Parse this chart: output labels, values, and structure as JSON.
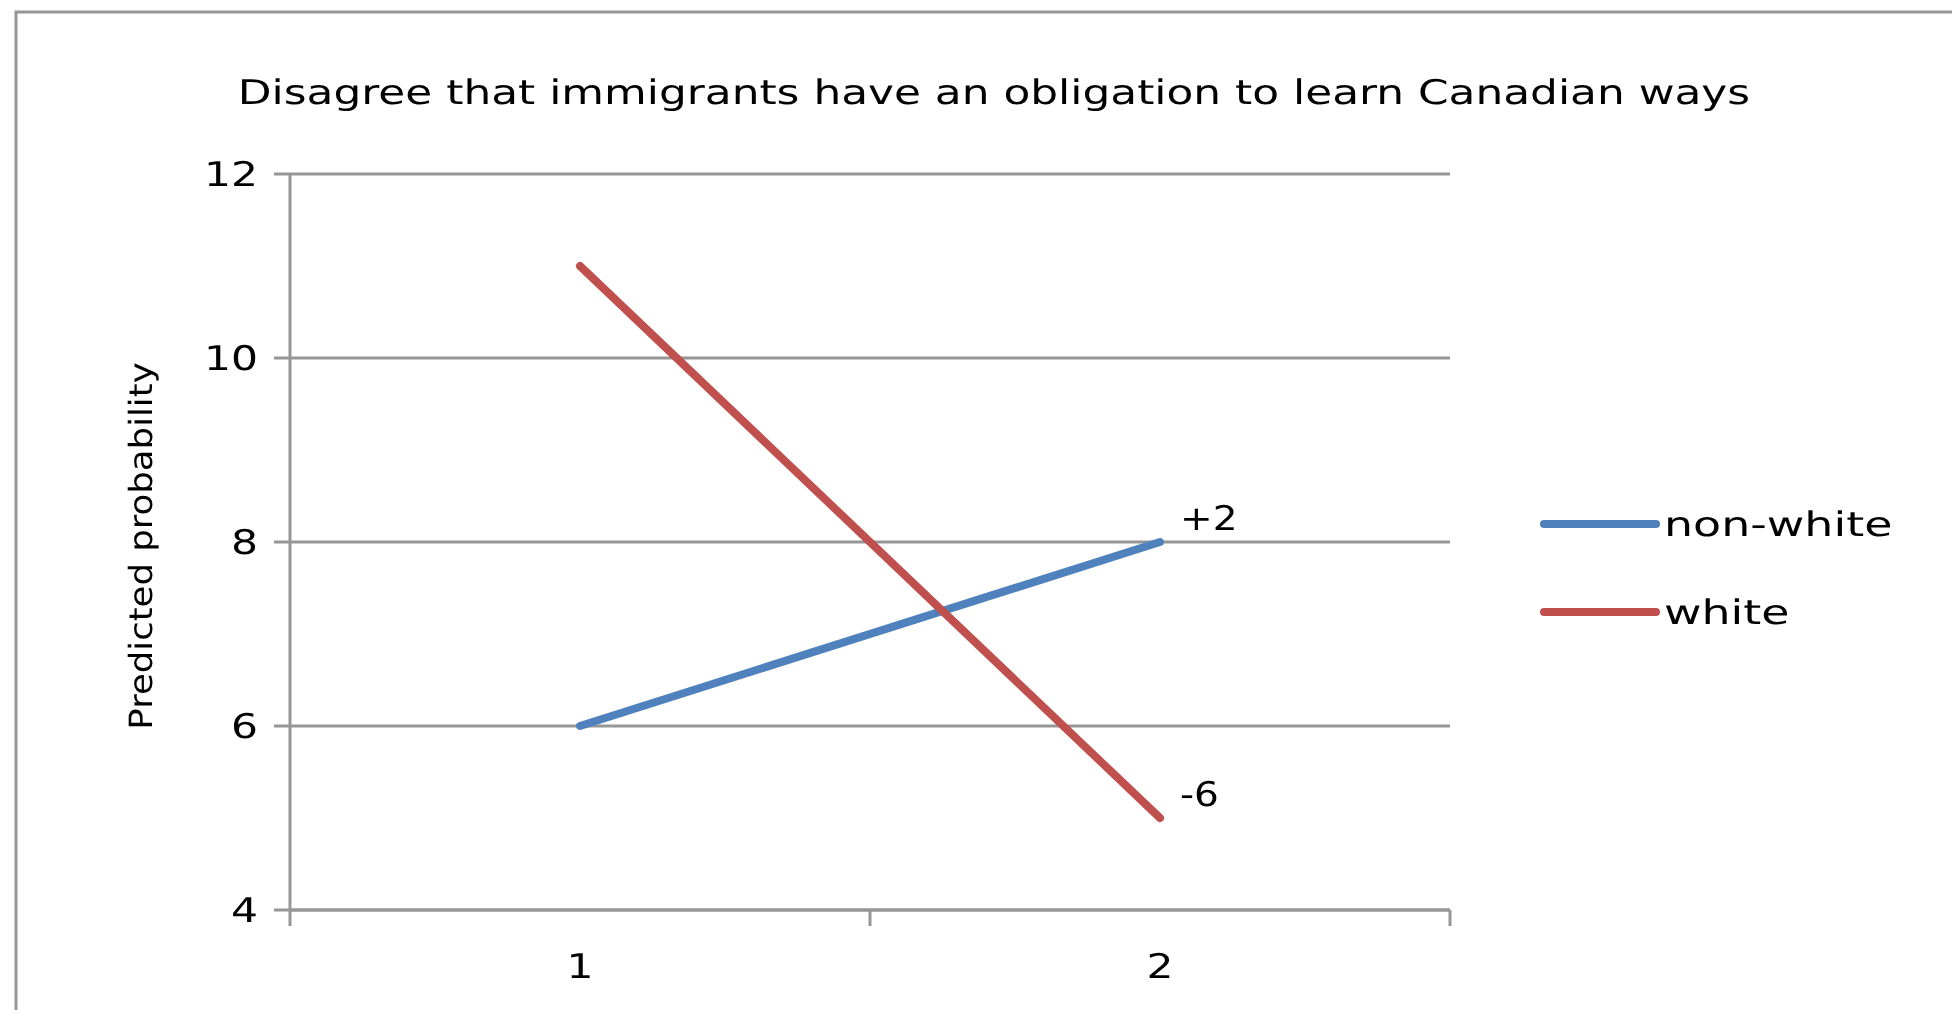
{
  "chart_data": {
    "type": "line",
    "title": "Disagree that immigrants have an obligation to learn Canadian ways",
    "ylabel": "Predicted probability",
    "categories": [
      "1",
      "2"
    ],
    "series": [
      {
        "name": "non-white",
        "color": "#4f81bd",
        "values": [
          6,
          8
        ]
      },
      {
        "name": "white",
        "color": "#c0504d",
        "values": [
          11,
          5
        ]
      }
    ],
    "ylim": [
      4,
      12
    ],
    "yticks": [
      4,
      6,
      8,
      10,
      12
    ],
    "grid": "y",
    "legend": "right",
    "marker": "none",
    "annotations": [
      {
        "text": "+2",
        "x": "2",
        "y": 8
      },
      {
        "text": "-6",
        "x": "2",
        "y": 5
      }
    ]
  }
}
